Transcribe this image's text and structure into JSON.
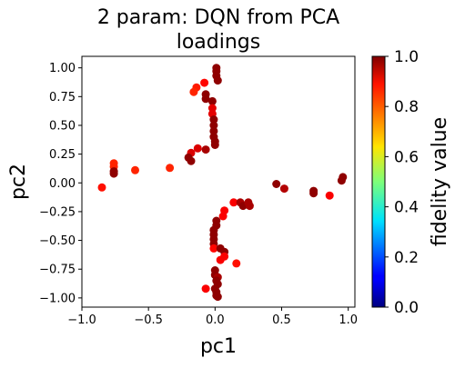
{
  "chart_data": {
    "type": "scatter",
    "title": "2 param:  DQN from PCA loadings",
    "title_lines": [
      "2 param:  DQN from PCA",
      "loadings"
    ],
    "xlabel": "pc1",
    "ylabel": "pc2",
    "xlim": [
      -1.0,
      1.05
    ],
    "ylim": [
      -1.08,
      1.1
    ],
    "x_ticks": [
      -1.0,
      -0.5,
      0.0,
      0.5,
      1.0
    ],
    "x_tick_labels": [
      "−1.0",
      "−0.5",
      "0.0",
      "0.5",
      "1.0"
    ],
    "y_ticks": [
      1.0,
      0.75,
      0.5,
      0.25,
      0.0,
      -0.25,
      -0.5,
      -0.75,
      -1.0
    ],
    "y_tick_labels": [
      "1.00",
      "0.75",
      "0.50",
      "0.25",
      "0.00",
      "−0.25",
      "−0.50",
      "−0.75",
      "−1.00"
    ],
    "grid": false,
    "colorbar": {
      "label": "fidelity value",
      "range": [
        0.0,
        1.0
      ],
      "ticks": [
        1.0,
        0.8,
        0.6,
        0.4,
        0.2,
        0.0
      ],
      "tick_labels": [
        "1.0",
        "0.8",
        "0.6",
        "0.4",
        "0.2",
        "0.0"
      ],
      "colormap": "jet"
    },
    "points": [
      {
        "x": 0.01,
        "y": 1.0,
        "c": 0.985
      },
      {
        "x": 0.01,
        "y": 0.97,
        "c": 0.985
      },
      {
        "x": 0.01,
        "y": 0.93,
        "c": 0.985
      },
      {
        "x": 0.02,
        "y": 0.89,
        "c": 0.985
      },
      {
        "x": -0.08,
        "y": 0.87,
        "c": 0.87
      },
      {
        "x": -0.14,
        "y": 0.83,
        "c": 0.85
      },
      {
        "x": -0.16,
        "y": 0.79,
        "c": 0.84
      },
      {
        "x": -0.07,
        "y": 0.77,
        "c": 0.985
      },
      {
        "x": -0.07,
        "y": 0.73,
        "c": 0.985
      },
      {
        "x": -0.02,
        "y": 0.71,
        "c": 0.985
      },
      {
        "x": -0.02,
        "y": 0.65,
        "c": 0.9
      },
      {
        "x": -0.02,
        "y": 0.6,
        "c": 0.9
      },
      {
        "x": -0.01,
        "y": 0.55,
        "c": 0.985
      },
      {
        "x": -0.01,
        "y": 0.5,
        "c": 0.985
      },
      {
        "x": -0.01,
        "y": 0.45,
        "c": 0.985
      },
      {
        "x": -0.01,
        "y": 0.4,
        "c": 0.985
      },
      {
        "x": 0.0,
        "y": 0.36,
        "c": 0.985
      },
      {
        "x": 0.0,
        "y": 0.33,
        "c": 0.985
      },
      {
        "x": -0.07,
        "y": 0.29,
        "c": 0.96
      },
      {
        "x": -0.13,
        "y": 0.3,
        "c": 0.91
      },
      {
        "x": -0.18,
        "y": 0.26,
        "c": 0.91
      },
      {
        "x": -0.2,
        "y": 0.22,
        "c": 0.985
      },
      {
        "x": -0.18,
        "y": 0.19,
        "c": 0.985
      },
      {
        "x": -0.85,
        "y": -0.04,
        "c": 0.86
      },
      {
        "x": -0.76,
        "y": 0.17,
        "c": 0.84
      },
      {
        "x": -0.76,
        "y": 0.14,
        "c": 0.84
      },
      {
        "x": -0.76,
        "y": 0.1,
        "c": 0.985
      },
      {
        "x": -0.76,
        "y": 0.08,
        "c": 0.985
      },
      {
        "x": -0.6,
        "y": 0.11,
        "c": 0.84
      },
      {
        "x": -0.34,
        "y": 0.13,
        "c": 0.84
      },
      {
        "x": 0.46,
        "y": -0.01,
        "c": 0.985
      },
      {
        "x": 0.52,
        "y": -0.05,
        "c": 0.95
      },
      {
        "x": 0.74,
        "y": -0.07,
        "c": 0.985
      },
      {
        "x": 0.74,
        "y": -0.09,
        "c": 0.985
      },
      {
        "x": 0.86,
        "y": -0.11,
        "c": 0.88
      },
      {
        "x": 0.95,
        "y": 0.02,
        "c": 0.985
      },
      {
        "x": 0.96,
        "y": 0.05,
        "c": 0.985
      },
      {
        "x": 0.14,
        "y": -0.17,
        "c": 0.88
      },
      {
        "x": 0.19,
        "y": -0.17,
        "c": 0.96
      },
      {
        "x": 0.21,
        "y": -0.2,
        "c": 0.985
      },
      {
        "x": 0.25,
        "y": -0.17,
        "c": 0.96
      },
      {
        "x": 0.26,
        "y": -0.2,
        "c": 0.96
      },
      {
        "x": 0.07,
        "y": -0.24,
        "c": 0.88
      },
      {
        "x": 0.06,
        "y": -0.29,
        "c": 0.88
      },
      {
        "x": 0.01,
        "y": -0.33,
        "c": 0.985
      },
      {
        "x": 0.01,
        "y": -0.37,
        "c": 0.985
      },
      {
        "x": -0.01,
        "y": -0.41,
        "c": 0.985
      },
      {
        "x": -0.01,
        "y": -0.45,
        "c": 0.985
      },
      {
        "x": -0.01,
        "y": -0.49,
        "c": 0.985
      },
      {
        "x": -0.01,
        "y": -0.53,
        "c": 0.985
      },
      {
        "x": -0.01,
        "y": -0.57,
        "c": 0.87
      },
      {
        "x": 0.04,
        "y": -0.57,
        "c": 0.985
      },
      {
        "x": 0.07,
        "y": -0.6,
        "c": 0.985
      },
      {
        "x": 0.07,
        "y": -0.64,
        "c": 0.88
      },
      {
        "x": 0.04,
        "y": -0.67,
        "c": 0.88
      },
      {
        "x": 0.16,
        "y": -0.7,
        "c": 0.86
      },
      {
        "x": 0.0,
        "y": -0.76,
        "c": 0.985
      },
      {
        "x": 0.0,
        "y": -0.8,
        "c": 0.985
      },
      {
        "x": 0.02,
        "y": -0.82,
        "c": 0.96
      },
      {
        "x": 0.01,
        "y": -0.85,
        "c": 0.985
      },
      {
        "x": 0.02,
        "y": -0.88,
        "c": 0.985
      },
      {
        "x": -0.07,
        "y": -0.92,
        "c": 0.88
      },
      {
        "x": 0.0,
        "y": -0.92,
        "c": 0.985
      },
      {
        "x": 0.01,
        "y": -0.95,
        "c": 0.985
      },
      {
        "x": 0.01,
        "y": -0.98,
        "c": 0.985
      },
      {
        "x": 0.02,
        "y": -0.99,
        "c": 0.985
      }
    ]
  }
}
